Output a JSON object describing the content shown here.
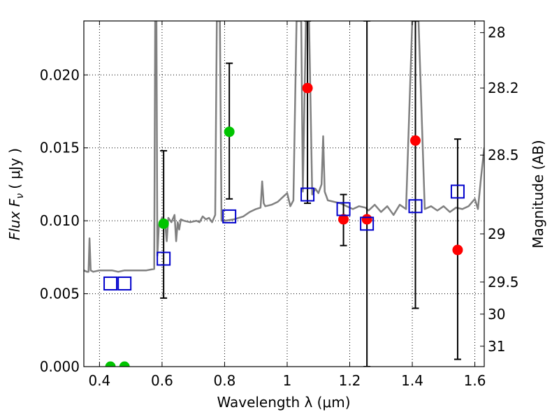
{
  "chart_data": {
    "type": "scatter",
    "xlabel": "Wavelength  λ (μm)",
    "ylabel": "Flux  F",
    "ylabel_sub": "ν",
    "ylabel_unit": "( μJy )",
    "ylabel_right": "Magnitude (AB)",
    "xlim": [
      0.35,
      1.63
    ],
    "ylim": [
      0.0,
      0.0237
    ],
    "grid": true,
    "x_ticks": [
      {
        "value": 0.4,
        "label": "0.4"
      },
      {
        "value": 0.6,
        "label": "0.6"
      },
      {
        "value": 0.8,
        "label": "0.8"
      },
      {
        "value": 1.0,
        "label": "1"
      },
      {
        "value": 1.2,
        "label": "1.2"
      },
      {
        "value": 1.4,
        "label": "1.4"
      },
      {
        "value": 1.6,
        "label": "1.6"
      }
    ],
    "y_ticks": [
      {
        "value": 0.0,
        "label": "0.000"
      },
      {
        "value": 0.005,
        "label": "0.005"
      },
      {
        "value": 0.01,
        "label": "0.010"
      },
      {
        "value": 0.015,
        "label": "0.015"
      },
      {
        "value": 0.02,
        "label": "0.020"
      }
    ],
    "right_ticks": [
      {
        "flux": 0.0229,
        "label": "28"
      },
      {
        "flux": 0.0191,
        "label": "28.2"
      },
      {
        "flux": 0.0145,
        "label": "28.5"
      },
      {
        "flux": 0.0091,
        "label": "29"
      },
      {
        "flux": 0.0058,
        "label": "29.5"
      },
      {
        "flux": 0.0036,
        "label": "30"
      },
      {
        "flux": 0.0014,
        "label": "31"
      }
    ],
    "series": [
      {
        "name": "model spectrum",
        "kind": "line",
        "color": "#808080",
        "x": [
          0.35,
          0.36,
          0.365,
          0.368,
          0.372,
          0.38,
          0.4,
          0.42,
          0.44,
          0.46,
          0.48,
          0.5,
          0.52,
          0.55,
          0.575,
          0.578,
          0.58,
          0.582,
          0.585,
          0.59,
          0.6,
          0.61,
          0.615,
          0.62,
          0.63,
          0.64,
          0.645,
          0.65,
          0.655,
          0.66,
          0.67,
          0.69,
          0.71,
          0.72,
          0.73,
          0.74,
          0.75,
          0.76,
          0.77,
          0.775,
          0.78,
          0.785,
          0.79,
          0.8,
          0.83,
          0.86,
          0.88,
          0.9,
          0.915,
          0.92,
          0.925,
          0.93,
          0.95,
          0.97,
          0.99,
          1.0,
          1.01,
          1.02,
          1.03,
          1.04,
          1.045,
          1.05,
          1.06,
          1.07,
          1.08,
          1.09,
          1.1,
          1.11,
          1.115,
          1.12,
          1.13,
          1.15,
          1.17,
          1.19,
          1.21,
          1.23,
          1.25,
          1.26,
          1.28,
          1.3,
          1.32,
          1.34,
          1.36,
          1.38,
          1.4,
          1.42,
          1.44,
          1.46,
          1.48,
          1.5,
          1.52,
          1.54,
          1.56,
          1.58,
          1.6,
          1.61,
          1.62,
          1.63
        ],
        "values": [
          0.0066,
          0.0065,
          0.0065,
          0.0088,
          0.0066,
          0.0065,
          0.0066,
          0.0066,
          0.0066,
          0.0065,
          0.0066,
          0.0066,
          0.0066,
          0.0066,
          0.0067,
          0.0237,
          0.0237,
          0.0237,
          0.0076,
          0.0097,
          0.0102,
          0.0098,
          0.0086,
          0.0102,
          0.0099,
          0.0104,
          0.0086,
          0.0099,
          0.0094,
          0.0101,
          0.01,
          0.0099,
          0.01,
          0.0099,
          0.0103,
          0.0101,
          0.0102,
          0.0099,
          0.0104,
          0.0237,
          0.0237,
          0.0237,
          0.01,
          0.01,
          0.0101,
          0.0103,
          0.0106,
          0.0108,
          0.0109,
          0.0127,
          0.0112,
          0.011,
          0.0111,
          0.0113,
          0.0117,
          0.0119,
          0.011,
          0.0114,
          0.0237,
          0.0237,
          0.0237,
          0.012,
          0.0237,
          0.0237,
          0.0118,
          0.0122,
          0.0119,
          0.0125,
          0.0158,
          0.012,
          0.0114,
          0.0113,
          0.0112,
          0.011,
          0.0108,
          0.011,
          0.0109,
          0.0107,
          0.0111,
          0.0106,
          0.011,
          0.0104,
          0.0111,
          0.0108,
          0.0237,
          0.0237,
          0.0108,
          0.011,
          0.0107,
          0.011,
          0.0106,
          0.0109,
          0.0108,
          0.011,
          0.0115,
          0.0108,
          0.013,
          0.015
        ]
      },
      {
        "name": "observed (green)",
        "kind": "marker",
        "marker": "circle",
        "color": "#00c400",
        "x": [
          0.435,
          0.48,
          0.605,
          0.815
        ],
        "values": [
          0.0,
          0.0,
          0.0098,
          0.0161
        ],
        "err_low": [
          0.0,
          0.0,
          0.0047,
          0.0115
        ],
        "err_high": [
          0.0,
          0.0,
          0.0148,
          0.0208
        ]
      },
      {
        "name": "observed (red)",
        "kind": "marker",
        "marker": "circle",
        "color": "#ff0000",
        "x": [
          1.065,
          1.18,
          1.255,
          1.41,
          1.545
        ],
        "values": [
          0.0191,
          0.0101,
          0.0101,
          0.0155,
          0.008
        ],
        "err_low": [
          0.0112,
          0.0083,
          0.0,
          0.004,
          0.0005
        ],
        "err_high": [
          0.0237,
          0.0118,
          0.0237,
          0.0237,
          0.0156
        ]
      },
      {
        "name": "model photometry",
        "kind": "marker",
        "marker": "open-square",
        "color": "#0000cc",
        "x": [
          0.435,
          0.48,
          0.605,
          0.815,
          1.065,
          1.18,
          1.255,
          1.41,
          1.545
        ],
        "values": [
          0.0057,
          0.0057,
          0.0074,
          0.0103,
          0.0118,
          0.0108,
          0.0098,
          0.011,
          0.012
        ]
      }
    ]
  }
}
